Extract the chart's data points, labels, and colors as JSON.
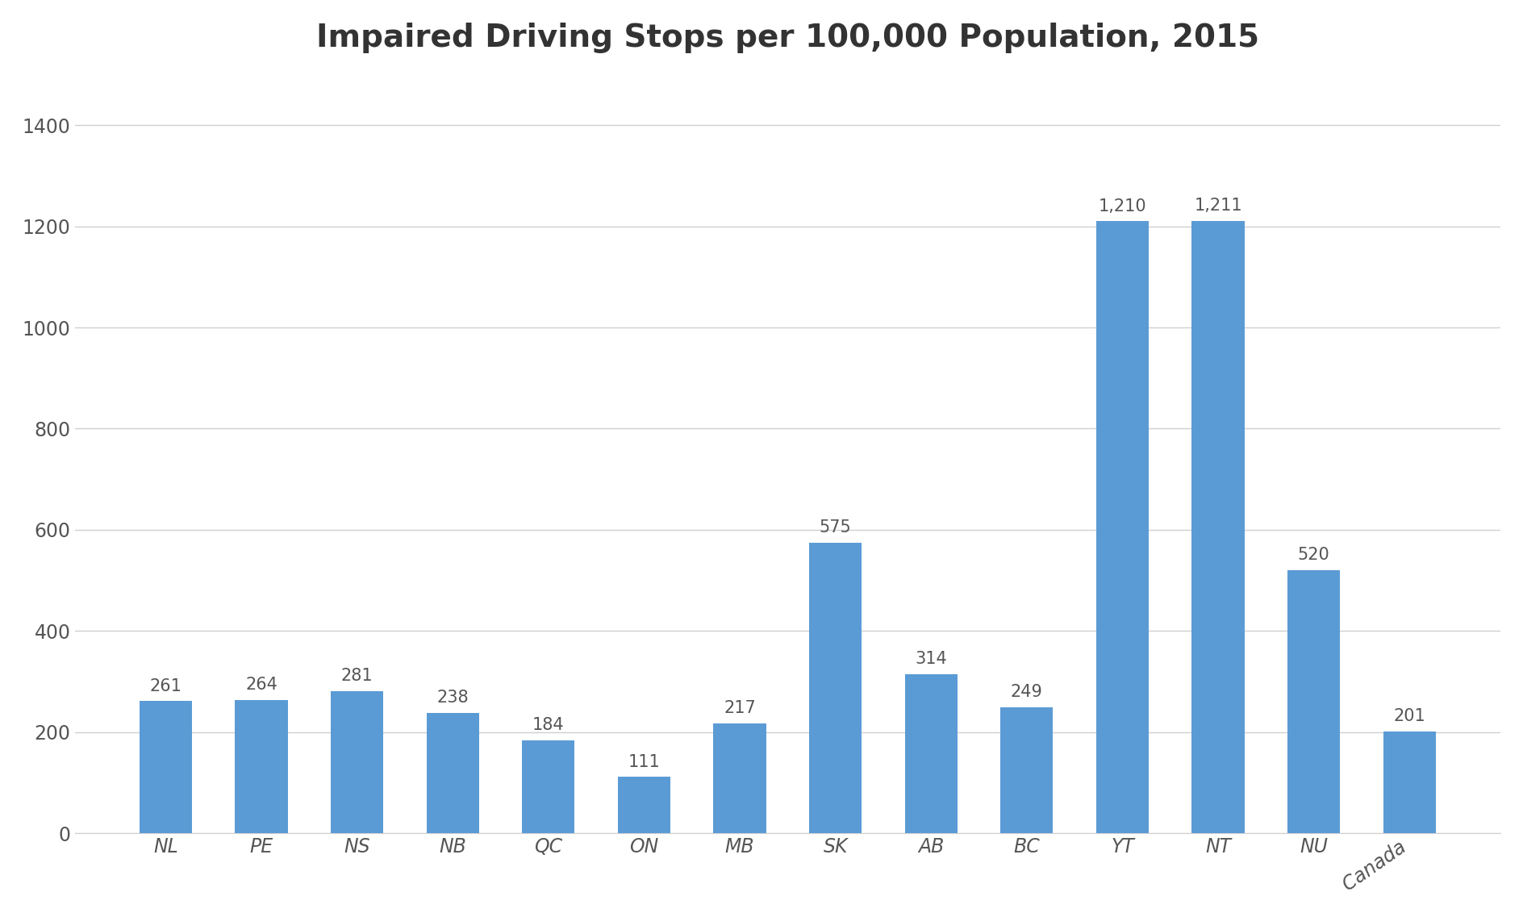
{
  "title": "Impaired Driving Stops per 100,000 Population, 2015",
  "categories": [
    "NL",
    "PE",
    "NS",
    "NB",
    "QC",
    "ON",
    "MB",
    "SK",
    "AB",
    "BC",
    "YT",
    "NT",
    "NU",
    "Canada"
  ],
  "values": [
    261,
    264,
    281,
    238,
    184,
    111,
    217,
    575,
    314,
    249,
    1210,
    1211,
    520,
    201
  ],
  "labels": [
    "261",
    "264",
    "281",
    "238",
    "184",
    "111",
    "217",
    "575",
    "314",
    "249",
    "1,210",
    "1,211",
    "520",
    "201"
  ],
  "bar_color": "#5B9BD5",
  "background_color": "#FFFFFF",
  "ylim": [
    0,
    1500
  ],
  "yticks": [
    0,
    200,
    400,
    600,
    800,
    1000,
    1200,
    1400
  ],
  "title_fontsize": 28,
  "label_fontsize": 15,
  "tick_fontsize": 17,
  "bar_width": 0.55,
  "grid_color": "#D0D0D0",
  "text_color": "#555555"
}
